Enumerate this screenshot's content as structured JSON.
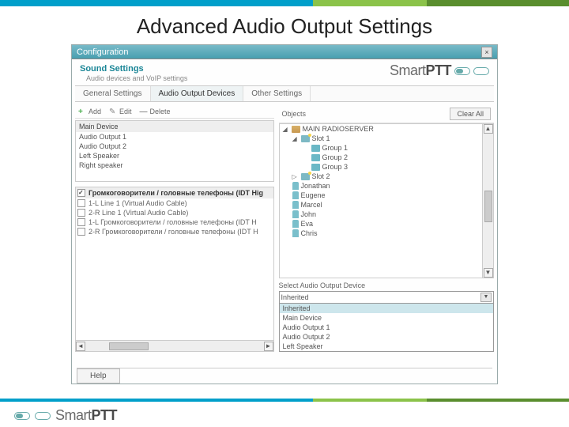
{
  "page_title": "Advanced Audio Output Settings",
  "window": {
    "title": "Configuration",
    "close_glyph": "×",
    "section_title": "Sound Settings",
    "section_sub": "Audio devices and VoIP settings",
    "brand_text_left": "Smart",
    "brand_text_right": "PTT"
  },
  "tabs": {
    "t0": "General Settings",
    "t1": "Audio Output Devices",
    "t2": "Other Settings"
  },
  "toolbar": {
    "add": "Add",
    "edit": "Edit",
    "delete": "Delete",
    "objects": "Objects",
    "clear_all": "Clear All"
  },
  "devices": {
    "header": "Main Device",
    "r0": "Audio Output 1",
    "r1": "Audio Output 2",
    "r2": "Left Speaker",
    "r3": "Right speaker"
  },
  "checklist": {
    "header": "Громкоговорители / головные телефоны (IDT Hig",
    "r0": "1-L   Line 1 (Virtual Audio Cable)",
    "r1": "2-R   Line 1 (Virtual Audio Cable)",
    "r2": "1-L   Громкоговорители / головные телефоны (IDT H",
    "r3": "2-R   Громкоговорители / головные телефоны (IDT H"
  },
  "tree": {
    "n0": "MAIN RADIOSERVER",
    "n1": "Slot 1",
    "g1": "Group 1",
    "g2": "Group 2",
    "g3": "Group 3",
    "n2": "Slot 2",
    "u0": "Jonathan",
    "u1": "Eugene",
    "u2": "Marcel",
    "u3": "John",
    "u4": "Eva",
    "u5": "Chris"
  },
  "select": {
    "label": "Select Audio Output Device",
    "value": "Inherited",
    "o0": "Inherited",
    "o1": "Main Device",
    "o2": "Audio Output 1",
    "o3": "Audio Output 2",
    "o4": "Left Speaker"
  },
  "help": "Help",
  "arrows": {
    "left": "◄",
    "right": "►",
    "up": "▲",
    "down": "▼"
  }
}
